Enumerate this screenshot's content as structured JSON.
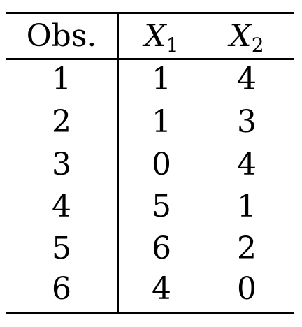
{
  "table": {
    "headers": [
      {
        "main": "Obs.",
        "sub": ""
      },
      {
        "main": "X",
        "sub": "1"
      },
      {
        "main": "X",
        "sub": "2"
      }
    ],
    "rows": [
      [
        "1",
        "1",
        "4"
      ],
      [
        "2",
        "1",
        "3"
      ],
      [
        "3",
        "0",
        "4"
      ],
      [
        "4",
        "5",
        "1"
      ],
      [
        "5",
        "6",
        "2"
      ],
      [
        "6",
        "4",
        "0"
      ]
    ]
  }
}
